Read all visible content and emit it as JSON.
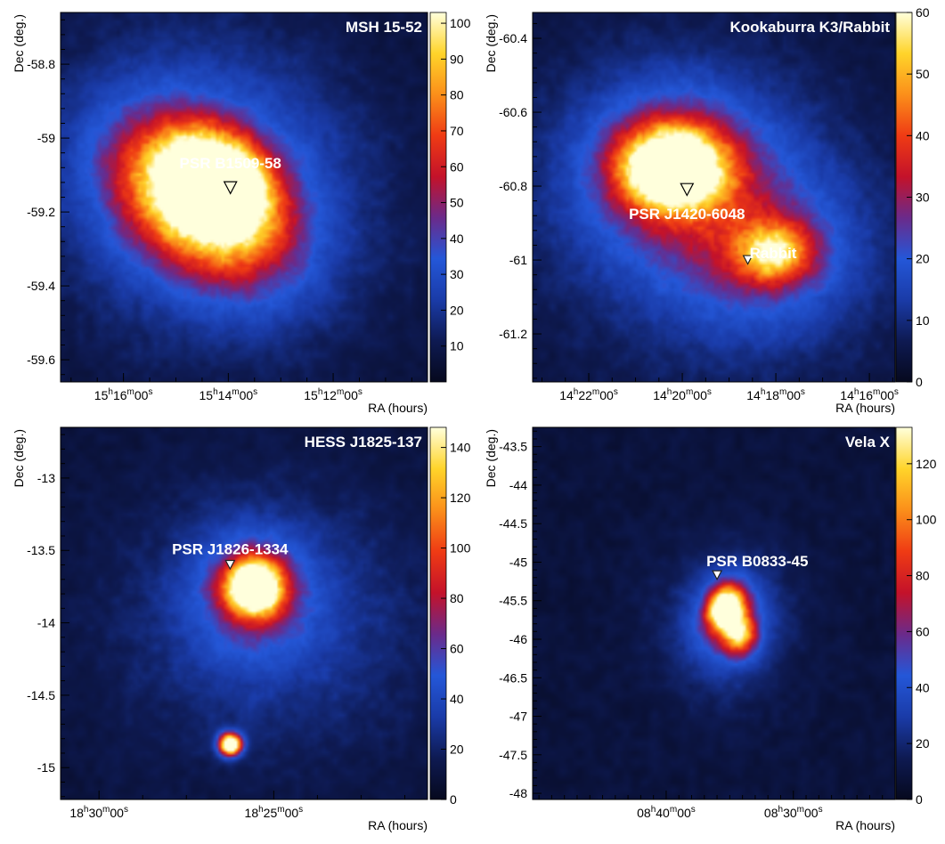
{
  "colors": {
    "page_bg": "#ffffff",
    "map_bg": "#06091e",
    "colormap": [
      "#06091e",
      "#0e1a52",
      "#1a3ba8",
      "#2457d8",
      "#6b2a8a",
      "#c4122a",
      "#ef3b14",
      "#fb8f1a",
      "#ffd42a",
      "#ffffdc"
    ]
  },
  "chart_data": [
    {
      "type": "heatmap",
      "title": "MSH 15-52",
      "xlabel": "RA (hours)",
      "ylabel": "Dec (deg.)",
      "x_ticks": [
        {
          "value": 16,
          "label": [
            "15",
            "h",
            "16",
            "m",
            "00",
            "s"
          ]
        },
        {
          "value": 14,
          "label": [
            "15",
            "h",
            "14",
            "m",
            "00",
            "s"
          ]
        },
        {
          "value": 12,
          "label": [
            "15",
            "h",
            "12",
            "m",
            "00",
            "s"
          ]
        }
      ],
      "xlim": [
        17.2,
        10.2
      ],
      "y_ticks": [
        "-58.8",
        "-59",
        "-59.2",
        "-59.4",
        "-59.6"
      ],
      "ylim": [
        -59.66,
        -58.66
      ],
      "colorbar": {
        "min": 0,
        "max": 103,
        "ticks": [
          "10",
          "20",
          "30",
          "40",
          "50",
          "60",
          "70",
          "80",
          "90",
          "100"
        ]
      },
      "sources": [
        {
          "x": 14.55,
          "y": -59.17,
          "sx": 1.2,
          "sy": 0.115,
          "angle": -38,
          "peak": 0.85
        },
        {
          "x": 14.15,
          "y": -59.11,
          "sx": 0.7,
          "sy": 0.075,
          "angle": -38,
          "peak": 0.7
        },
        {
          "x": 14.3,
          "y": -59.14,
          "sx": 2.0,
          "sy": 0.26,
          "angle": -38,
          "peak": 0.32
        }
      ],
      "markers": [
        {
          "label": "PSR B1509-58",
          "x": 13.96,
          "y": -59.135,
          "shape": "triangle-down"
        }
      ]
    },
    {
      "type": "heatmap",
      "title": "Kookaburra K3/Rabbit",
      "xlabel": "RA (hours)",
      "ylabel": "Dec (deg.)",
      "x_ticks": [
        {
          "value": 22,
          "label": [
            "14",
            "h",
            "22",
            "m",
            "00",
            "s"
          ]
        },
        {
          "value": 20,
          "label": [
            "14",
            "h",
            "20",
            "m",
            "00",
            "s"
          ]
        },
        {
          "value": 18,
          "label": [
            "14",
            "h",
            "18",
            "m",
            "00",
            "s"
          ]
        },
        {
          "value": 16,
          "label": [
            "14",
            "h",
            "16",
            "m",
            "00",
            "s"
          ]
        }
      ],
      "xlim": [
        23.2,
        15.45
      ],
      "y_ticks": [
        "-60.4",
        "-60.6",
        "-60.8",
        "-61",
        "-61.2"
      ],
      "ylim": [
        -61.33,
        -60.33
      ],
      "colorbar": {
        "min": 0,
        "max": 60,
        "ticks": [
          "0",
          "10",
          "20",
          "30",
          "40",
          "50",
          "60"
        ]
      },
      "sources": [
        {
          "x": 20.2,
          "y": -60.75,
          "sx": 0.75,
          "sy": 0.075,
          "angle": 0,
          "peak": 1.05
        },
        {
          "x": 20.2,
          "y": -60.75,
          "sx": 1.5,
          "sy": 0.17,
          "angle": 0,
          "peak": 0.35
        },
        {
          "x": 18.05,
          "y": -60.98,
          "sx": 0.55,
          "sy": 0.055,
          "angle": 0,
          "peak": 0.55
        },
        {
          "x": 18.2,
          "y": -60.98,
          "sx": 1.4,
          "sy": 0.15,
          "angle": 0,
          "peak": 0.26
        },
        {
          "x": 19.4,
          "y": -60.9,
          "sx": 2.6,
          "sy": 0.3,
          "angle": -20,
          "peak": 0.15
        }
      ],
      "markers": [
        {
          "label": "PSR J1420-6048",
          "x": 19.9,
          "y": -60.81,
          "shape": "triangle-down"
        },
        {
          "label": "Rabbit",
          "x": 18.6,
          "y": -61.0,
          "shape": "triangle-down-small"
        }
      ]
    },
    {
      "type": "heatmap",
      "title": "HESS J1825-137",
      "xlabel": "RA (hours)",
      "ylabel": "Dec (deg.)",
      "x_ticks": [
        {
          "value": 30,
          "label": [
            "18",
            "h",
            "30",
            "m",
            "00",
            "s"
          ]
        },
        {
          "value": 25,
          "label": [
            "18",
            "h",
            "25",
            "m",
            "00",
            "s"
          ]
        }
      ],
      "xlim": [
        31.1,
        20.6
      ],
      "y_ticks": [
        "-13",
        "-13.5",
        "-14",
        "-14.5",
        "-15"
      ],
      "ylim": [
        -15.22,
        -12.65
      ],
      "colorbar": {
        "min": 0,
        "max": 148,
        "ticks": [
          "0",
          "20",
          "40",
          "60",
          "80",
          "100",
          "120",
          "140"
        ]
      },
      "sources": [
        {
          "x": 25.55,
          "y": -13.75,
          "sx": 0.55,
          "sy": 0.13,
          "angle": 0,
          "peak": 1.05
        },
        {
          "x": 25.6,
          "y": -13.78,
          "sx": 1.2,
          "sy": 0.3,
          "angle": 0,
          "peak": 0.3
        },
        {
          "x": 25.1,
          "y": -14.0,
          "sx": 3.0,
          "sy": 0.62,
          "angle": 0,
          "peak": 0.17
        },
        {
          "x": 26.25,
          "y": -14.84,
          "sx": 0.22,
          "sy": 0.052,
          "angle": 0,
          "peak": 1.3
        }
      ],
      "markers": [
        {
          "label": "PSR J1826-1334",
          "x": 26.25,
          "y": -13.6,
          "shape": "triangle-down-small"
        }
      ]
    },
    {
      "type": "heatmap",
      "title": "Vela X",
      "xlabel": "RA (hours)",
      "ylabel": "Dec (deg.)",
      "x_ticks": [
        {
          "value": 40,
          "label": [
            "08",
            "h",
            "40",
            "m",
            "00",
            "s"
          ]
        },
        {
          "value": 30,
          "label": [
            "08",
            "h",
            "30",
            "m",
            "00",
            "s"
          ]
        }
      ],
      "xlim": [
        50.5,
        22.0
      ],
      "y_ticks": [
        "-43.5",
        "-44",
        "-44.5",
        "-45",
        "-45.5",
        "-46",
        "-46.5",
        "-47",
        "-47.5",
        "-48"
      ],
      "ylim": [
        -48.08,
        -43.25
      ],
      "colorbar": {
        "min": 0,
        "max": 133,
        "ticks": [
          "0",
          "20",
          "40",
          "60",
          "80",
          "100",
          "120"
        ]
      },
      "sources": [
        {
          "x": 35.3,
          "y": -45.6,
          "sx": 0.95,
          "sy": 0.2,
          "angle": -20,
          "peak": 1.0
        },
        {
          "x": 34.2,
          "y": -45.95,
          "sx": 0.9,
          "sy": 0.17,
          "angle": -10,
          "peak": 0.55
        },
        {
          "x": 35.0,
          "y": -45.75,
          "sx": 2.2,
          "sy": 0.45,
          "angle": -15,
          "peak": 0.3
        },
        {
          "x": 35.5,
          "y": -45.8,
          "sx": 4.0,
          "sy": 0.8,
          "angle": 0,
          "peak": 0.1
        }
      ],
      "markers": [
        {
          "label": "PSR B0833-45",
          "x": 36.0,
          "y": -45.17,
          "shape": "triangle-down-small"
        }
      ]
    }
  ]
}
